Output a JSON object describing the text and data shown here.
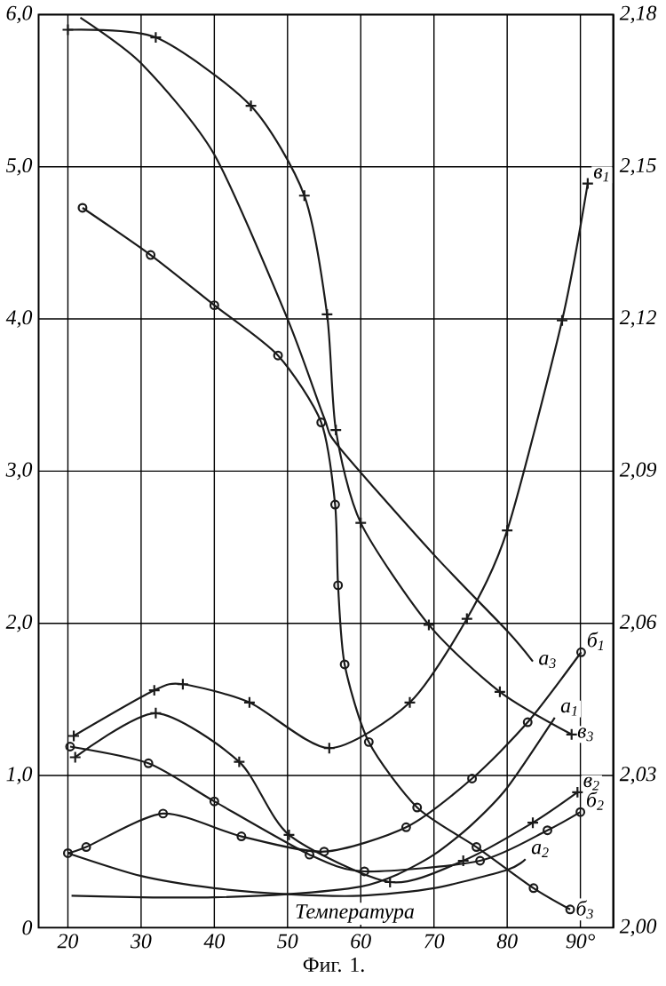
{
  "chart_data": {
    "type": "line",
    "xlabel": "Температура",
    "annotations": [
      "Фиг. 1."
    ],
    "xlim": [
      16,
      94.5
    ],
    "xticks": [
      20,
      30,
      40,
      50,
      60,
      70,
      80,
      {
        "value": 90,
        "label": "90°"
      }
    ],
    "ylim": [
      0,
      6
    ],
    "yticks": [
      0,
      {
        "value": 1,
        "label": "1,0"
      },
      {
        "value": 2,
        "label": "2,0"
      },
      {
        "value": 3,
        "label": "3,0"
      },
      {
        "value": 4,
        "label": "4,0"
      },
      {
        "value": 5,
        "label": "5,0"
      },
      {
        "value": 6,
        "label": "6,0"
      }
    ],
    "y2lim": [
      2.0,
      2.18
    ],
    "y2ticks": [
      {
        "value": 2.0,
        "label": "2,00"
      },
      {
        "value": 2.03,
        "label": "2,03"
      },
      {
        "value": 2.06,
        "label": "2,06"
      },
      {
        "value": 2.09,
        "label": "2,09"
      },
      {
        "value": 2.12,
        "label": "2,12"
      },
      {
        "value": 2.15,
        "label": "2,15"
      },
      {
        "value": 2.18,
        "label": "2,18"
      }
    ],
    "grid": true,
    "line_style": "solid",
    "series": [
      {
        "name": "а$_{1}$",
        "color": "#1a1a1a",
        "marker": "none",
        "x": [
          20.5,
          30,
          40,
          50,
          60,
          65,
          70,
          75,
          80,
          86.5
        ],
        "values": [
          0.21,
          0.2,
          0.2,
          0.22,
          0.27,
          0.35,
          0.48,
          0.67,
          0.92,
          1.38
        ]
      },
      {
        "name": "а$_{2}$",
        "color": "#1a1a1a",
        "marker": "none",
        "x": [
          20,
          30,
          40,
          50,
          60,
          70,
          80,
          82.5
        ],
        "values": [
          0.49,
          0.34,
          0.26,
          0.22,
          0.21,
          0.26,
          0.38,
          0.45
        ]
      },
      {
        "name": "а$_{3}$",
        "color": "#1a1a1a",
        "marker": "none",
        "x": [
          21.7,
          30,
          40,
          50,
          55,
          57,
          70,
          80,
          83.5
        ],
        "values": [
          5.98,
          5.68,
          5.08,
          4.0,
          3.35,
          3.16,
          2.45,
          1.95,
          1.75
        ]
      },
      {
        "name": "б$_{1}$",
        "color": "#1a1a1a",
        "marker": "circle",
        "x": [
          20,
          22.5,
          33,
          43.7,
          55,
          66.2,
          75.2,
          82.8,
          90.1
        ],
        "values": [
          0.49,
          0.53,
          0.75,
          0.6,
          0.5,
          0.66,
          0.98,
          1.35,
          1.81
        ]
      },
      {
        "name": "б$_{2}$",
        "color": "#1a1a1a",
        "marker": "circle",
        "x": [
          20.3,
          31,
          40,
          53,
          60.5,
          76.3,
          85.5,
          90
        ],
        "values": [
          1.19,
          1.08,
          0.83,
          0.48,
          0.37,
          0.44,
          0.64,
          0.76
        ]
      },
      {
        "name": "б$_{3}$",
        "color": "#1a1a1a",
        "marker": "circle",
        "x": [
          22,
          31.3,
          40,
          48.7,
          54.6,
          56.5,
          56.9,
          57.8,
          61.1,
          67.7,
          75.8,
          83.6,
          88.6
        ],
        "values": [
          4.73,
          4.42,
          4.09,
          3.76,
          3.32,
          2.78,
          2.25,
          1.73,
          1.22,
          0.79,
          0.53,
          0.26,
          0.12
        ]
      },
      {
        "name": "в$_{1}$",
        "color": "#1a1a1a",
        "marker": "cross",
        "x": [
          20.8,
          31.8,
          35.7,
          44.8,
          55.7,
          66.7,
          74.5,
          80,
          87.5,
          91
        ],
        "values": [
          1.26,
          1.56,
          1.6,
          1.48,
          1.18,
          1.48,
          2.03,
          2.61,
          3.99,
          4.89
        ]
      },
      {
        "name": "в$_{2}$",
        "color": "#1a1a1a",
        "marker": "cross",
        "x": [
          21,
          32,
          43.4,
          50.2,
          64,
          74,
          83.5,
          89.6
        ],
        "values": [
          1.12,
          1.41,
          1.09,
          0.61,
          0.3,
          0.44,
          0.69,
          0.89
        ]
      },
      {
        "name": "в$_{3}$",
        "color": "#1a1a1a",
        "marker": "cross",
        "x": [
          20,
          32,
          45,
          52.3,
          55.4,
          56.6,
          60,
          69.3,
          79,
          88.8
        ],
        "values": [
          5.9,
          5.85,
          5.4,
          4.81,
          4.03,
          3.27,
          2.66,
          1.99,
          1.55,
          1.27
        ]
      }
    ]
  }
}
